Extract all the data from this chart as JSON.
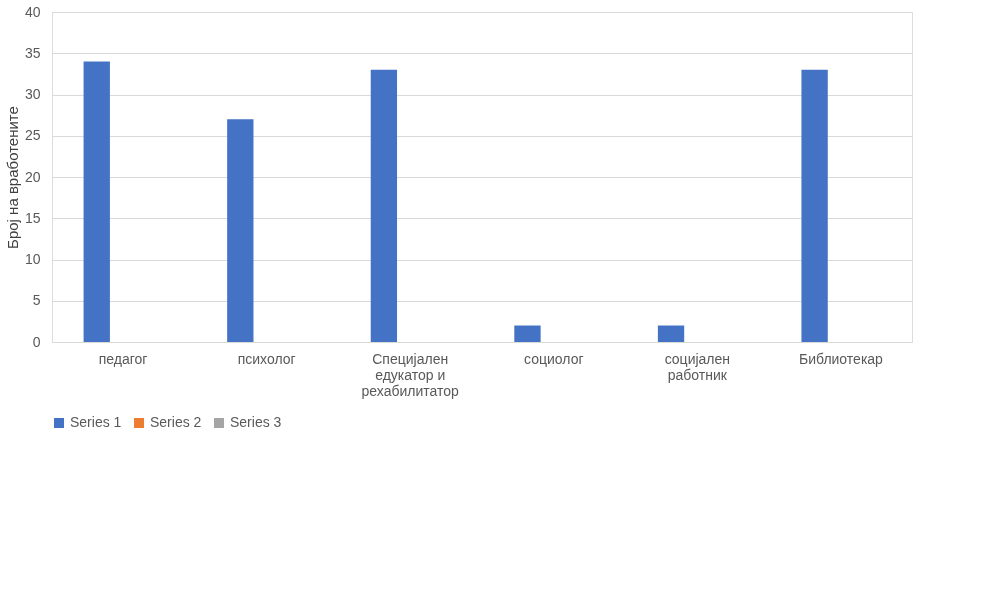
{
  "chart_data": {
    "type": "bar",
    "ylabel": "Број на вработените",
    "categories": [
      "педагог",
      "психолог",
      "Специјален едукатор и рехабилитатор",
      "социолог",
      "социјален работник",
      "Библиотекар"
    ],
    "series": [
      {
        "name": "Series 1",
        "color": "#4472c4",
        "values": [
          34,
          27,
          33,
          2,
          2,
          33
        ]
      },
      {
        "name": "Series 2",
        "color": "#ed7d31",
        "values": [
          null,
          null,
          null,
          null,
          null,
          null
        ]
      },
      {
        "name": "Series 3",
        "color": "#a5a5a5",
        "values": [
          null,
          null,
          null,
          null,
          null,
          null
        ]
      }
    ],
    "ylim": [
      0,
      40
    ],
    "yticks": [
      0,
      5,
      10,
      15,
      20,
      25,
      30,
      35,
      40
    ],
    "grid": "y",
    "legend": "bottom"
  }
}
